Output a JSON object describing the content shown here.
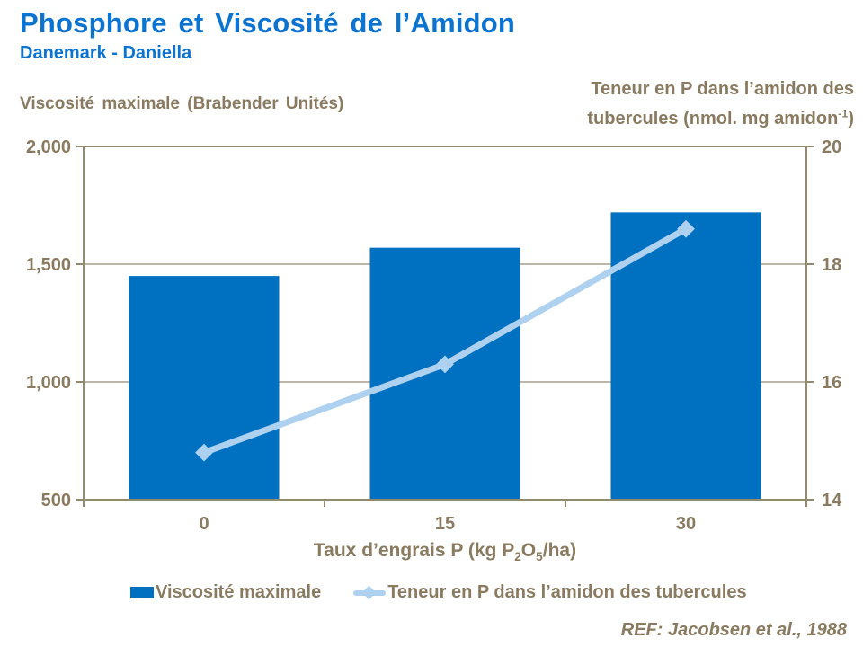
{
  "header": {
    "title": "Phosphore et Viscosité de l’Amidon",
    "subtitle": "Danemark - Daniella"
  },
  "axes": {
    "left_label": "Viscosité maximale (Brabender Unités)",
    "right_label_line1": "Teneur en P dans l’amidon des",
    "right_label_line2_p1": "tubercules (nmol. mg amidon",
    "right_label_sup": "-1",
    "right_label_line2_p2": ")",
    "x_title_p1": "Taux d’engrais P (kg P",
    "x_title_sub1": "2",
    "x_title_p2": "O",
    "x_title_sub2": "5",
    "x_title_p3": "/ha)"
  },
  "legend": {
    "bar_label": "Viscosité maximale",
    "line_label": "Teneur en P dans l’amidon des tubercules"
  },
  "ref_note": "REF: Jacobsen et al., 1988",
  "colors": {
    "title_blue": "#0b74d1",
    "bar_blue": "#0070c0",
    "line_blue": "#aed1f0",
    "tan_text": "#8a7b60",
    "axis_line": "#93896f",
    "grid_line": "#a79e8c"
  },
  "chart_data": {
    "type": "bar",
    "note": "combo chart: bars on left axis, line with diamond markers on right axis",
    "categories": [
      "0",
      "15",
      "30"
    ],
    "series": [
      {
        "name": "Viscosité maximale",
        "type": "bar",
        "axis": "left",
        "values": [
          1450,
          1570,
          1720
        ]
      },
      {
        "name": "Teneur en P dans l’amidon des tubercules",
        "type": "line",
        "axis": "right",
        "values": [
          14.8,
          16.3,
          18.6
        ]
      }
    ],
    "title": "Phosphore et Viscosité de l’Amidon",
    "xlabel": "Taux d’engrais P (kg P2O5/ha)",
    "ylabel_left": "Viscosité maximale (Brabender Unités)",
    "ylabel_right": "Teneur en P dans l’amidon des tubercules (nmol. mg amidon-1)",
    "y_left": {
      "min": 500,
      "max": 2000,
      "ticks": [
        {
          "v": 2000,
          "label": "2,000"
        },
        {
          "v": 1500,
          "label": "1,500"
        },
        {
          "v": 1000,
          "label": "1,000"
        },
        {
          "v": 500,
          "label": "500"
        }
      ],
      "grid": [
        1500,
        1000
      ]
    },
    "y_right": {
      "min": 14,
      "max": 20,
      "ticks": [
        {
          "v": 20,
          "label": "20"
        },
        {
          "v": 18,
          "label": "18"
        },
        {
          "v": 16,
          "label": "16"
        },
        {
          "v": 14,
          "label": "14"
        }
      ]
    },
    "legend_position": "bottom",
    "grid": "horizontal-only"
  }
}
